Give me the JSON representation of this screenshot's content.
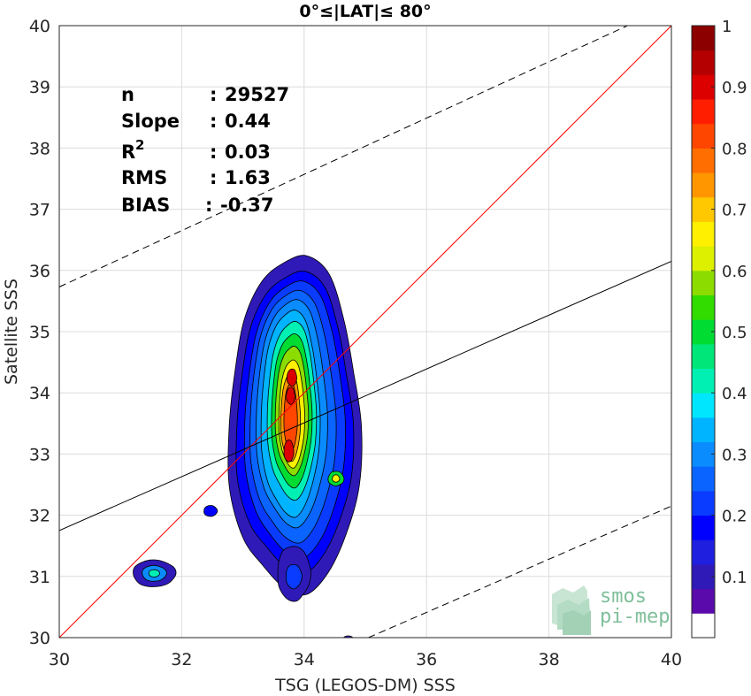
{
  "chart_data": {
    "type": "density_contour",
    "title": "0°≤|LAT|≤ 80°",
    "xlabel": "TSG (LEGOS-DM) SSS",
    "ylabel": "Satellite SSS",
    "xlim": [
      30,
      40
    ],
    "ylim": [
      30,
      40
    ],
    "xticks": [
      "30",
      "32",
      "34",
      "36",
      "38",
      "40"
    ],
    "yticks": [
      "30",
      "31",
      "32",
      "33",
      "34",
      "35",
      "36",
      "37",
      "38",
      "39",
      "40"
    ],
    "grid": true,
    "stats": [
      {
        "label": "n",
        "sep": ":",
        "value": "29527"
      },
      {
        "label": "Slope",
        "sep": ":",
        "value": "0.44"
      },
      {
        "label": "R",
        "sup": "2",
        "sep": ":",
        "value": "0.03"
      },
      {
        "label": "RMS",
        "sep": ":",
        "value": "1.63"
      },
      {
        "label": "BIAS",
        "sep": ":",
        "value": "-0.37"
      }
    ],
    "lines": {
      "identity": {
        "x": [
          30,
          40
        ],
        "y": [
          30,
          40
        ],
        "color": "#ff0000",
        "style": "solid"
      },
      "fit": {
        "x": [
          30,
          40
        ],
        "y": [
          31.75,
          36.15
        ],
        "color": "#000000",
        "style": "solid"
      },
      "upper_bound": {
        "x": [
          30,
          40
        ],
        "y": [
          35.73,
          40.33
        ],
        "color": "#000000",
        "style": "dashed"
      },
      "lower_bound": {
        "x": [
          35.05,
          40
        ],
        "y": [
          30.0,
          32.15
        ],
        "color": "#000000",
        "style": "dashed"
      }
    },
    "density": {
      "main_blob": {
        "cx": 33.9,
        "cy": 33.3,
        "levels": [
          {
            "level": 0.05,
            "color": "#2f1ab8",
            "x": [
              33.2,
              34.05,
              34.65,
              34.55,
              34.4,
              34.1,
              33.75,
              33.3,
              32.9,
              32.7,
              32.95
            ]
          },
          {
            "level": 0.1,
            "color": "#1f1fe0"
          },
          {
            "level": 0.15,
            "color": "#0a3cff"
          },
          {
            "level": 0.2,
            "color": "#0a64ff"
          }
        ]
      },
      "peak_value": 1
    },
    "colorbar": {
      "min": 0,
      "max": 1,
      "ticks": [
        "0.1",
        "0.2",
        "0.3",
        "0.4",
        "0.5",
        "0.6",
        "0.7",
        "0.8",
        "0.9",
        "1"
      ],
      "colors": [
        "#ffffff",
        "#5a0aaa",
        "#2f1ab8",
        "#1f1fe0",
        "#0000ff",
        "#0a3cff",
        "#0a64ff",
        "#0a8cff",
        "#00b4ff",
        "#00e6ff",
        "#00f0b4",
        "#00e678",
        "#00dc32",
        "#32dc00",
        "#8cdc00",
        "#dcf000",
        "#fff000",
        "#ffc800",
        "#ff9600",
        "#ff6e00",
        "#ff4600",
        "#ff1e00",
        "#dc0000",
        "#b40000",
        "#8c0000"
      ]
    }
  },
  "logo": {
    "line1": "smos",
    "line2": "pi-mep"
  }
}
